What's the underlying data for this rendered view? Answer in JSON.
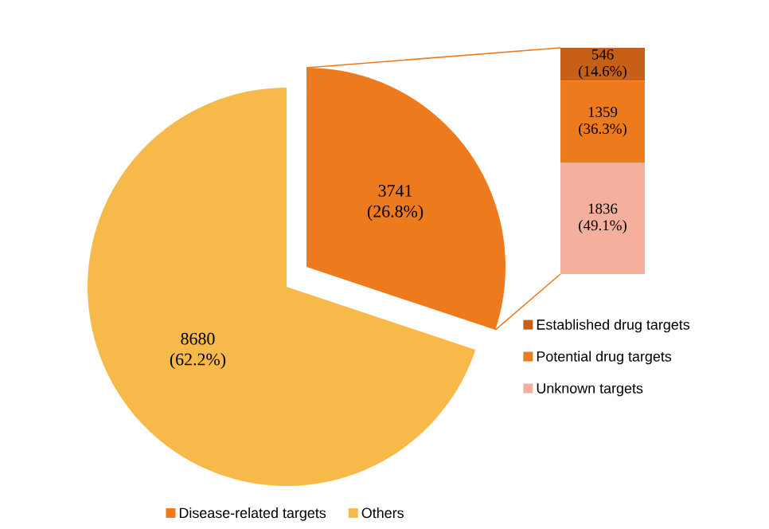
{
  "chart_data": [
    {
      "type": "pie",
      "categories": [
        "Disease-related targets",
        "Others"
      ],
      "values": [
        3741,
        8680
      ],
      "colors": [
        "#ee7a1e",
        "#f6b94a"
      ],
      "value_labels": [
        "3741 (26.8%)",
        "8680 (62.2%)"
      ],
      "legend": "bottom"
    },
    {
      "type": "bar",
      "stacked": true,
      "categories": [
        null
      ],
      "legend": "bottom",
      "series": [
        {
          "name": "Unknown targets",
          "color": "#f4b09c",
          "values": [
            1836
          ],
          "value_labels": [
            "1836 (49.1%)"
          ]
        },
        {
          "name": "Potential drug targets",
          "color": "#ee7a1e",
          "values": [
            1359
          ],
          "value_labels": [
            "1359 (36.3%)"
          ]
        },
        {
          "name": "Established drug targets",
          "color": "#c85f17",
          "values": [
            546
          ],
          "value_labels": [
            "546 (14.6%)"
          ]
        }
      ]
    }
  ]
}
